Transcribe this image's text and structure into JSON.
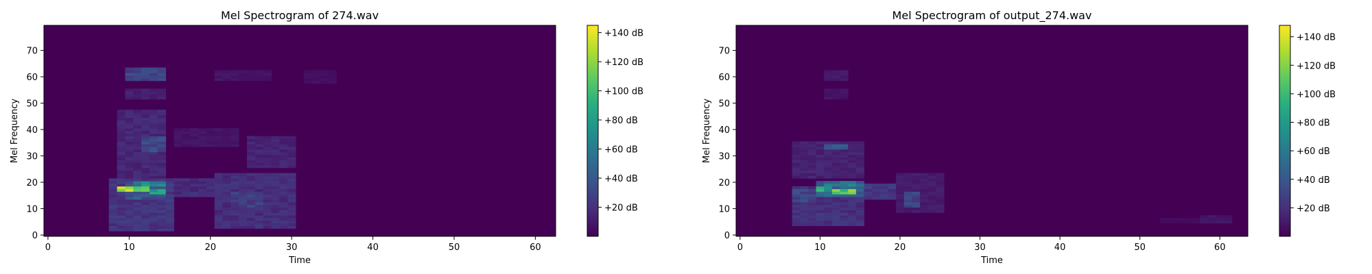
{
  "chart_data": [
    {
      "type": "heatmap",
      "title": "Mel Spectrogram of 274.wav",
      "xlabel": "Time",
      "ylabel": "Mel Frequency",
      "xlim": [
        -0.5,
        62.5
      ],
      "ylim": [
        -0.5,
        79.5
      ],
      "xticks": [
        0,
        10,
        20,
        30,
        40,
        50,
        60
      ],
      "yticks": [
        0,
        10,
        20,
        30,
        40,
        50,
        60,
        70
      ],
      "colormap": "viridis",
      "colorbar": {
        "range": [
          0,
          145
        ],
        "ticks": [
          20,
          40,
          60,
          80,
          100,
          120,
          140
        ],
        "tick_labels": [
          "+20 dB",
          "+40 dB",
          "+60 dB",
          "+80 dB",
          "+100 dB",
          "+120 dB",
          "+140 dB"
        ]
      },
      "regions": [
        {
          "t": [
            8,
            16
          ],
          "mel": [
            2,
            22
          ],
          "db": 28
        },
        {
          "t": [
            10,
            15
          ],
          "mel": [
            14,
            21
          ],
          "db": 50
        },
        {
          "t": [
            9,
            13
          ],
          "mel": [
            17,
            19
          ],
          "db": 140
        },
        {
          "t": [
            11,
            15
          ],
          "mel": [
            19,
            21
          ],
          "db": 85
        },
        {
          "t": [
            13,
            15
          ],
          "mel": [
            16,
            18
          ],
          "db": 90
        },
        {
          "t": [
            9,
            15
          ],
          "mel": [
            22,
            48
          ],
          "db": 20
        },
        {
          "t": [
            12,
            15
          ],
          "mel": [
            32,
            38
          ],
          "db": 42
        },
        {
          "t": [
            10,
            15
          ],
          "mel": [
            59,
            64
          ],
          "db": 38
        },
        {
          "t": [
            10,
            15
          ],
          "mel": [
            52,
            56
          ],
          "db": 16
        },
        {
          "t": [
            16,
            21
          ],
          "mel": [
            15,
            22
          ],
          "db": 22
        },
        {
          "t": [
            21,
            31
          ],
          "mel": [
            3,
            24
          ],
          "db": 24
        },
        {
          "t": [
            23,
            27
          ],
          "mel": [
            11,
            17
          ],
          "db": 34
        },
        {
          "t": [
            25,
            31
          ],
          "mel": [
            26,
            38
          ],
          "db": 18
        },
        {
          "t": [
            21,
            28
          ],
          "mel": [
            59,
            63
          ],
          "db": 10
        },
        {
          "t": [
            16,
            24
          ],
          "mel": [
            34,
            41
          ],
          "db": 10
        },
        {
          "t": [
            32,
            36
          ],
          "mel": [
            58,
            63
          ],
          "db": 8
        }
      ]
    },
    {
      "type": "heatmap",
      "title": "Mel Spectrogram of output_274.wav",
      "xlabel": "Time",
      "ylabel": "Mel Frequency",
      "xlim": [
        -0.5,
        63.5
      ],
      "ylim": [
        -0.5,
        79.5
      ],
      "xticks": [
        0,
        10,
        20,
        30,
        40,
        50,
        60
      ],
      "yticks": [
        0,
        10,
        20,
        30,
        40,
        50,
        60,
        70
      ],
      "colormap": "viridis",
      "colorbar": {
        "range": [
          0,
          148
        ],
        "ticks": [
          20,
          40,
          60,
          80,
          100,
          120,
          140
        ],
        "tick_labels": [
          "+20 dB",
          "+40 dB",
          "+60 dB",
          "+80 dB",
          "+100 dB",
          "+120 dB",
          "+140 dB"
        ]
      },
      "regions": [
        {
          "t": [
            7,
            16
          ],
          "mel": [
            4,
            19
          ],
          "db": 26
        },
        {
          "t": [
            7,
            10
          ],
          "mel": [
            13,
            18
          ],
          "db": 38
        },
        {
          "t": [
            10,
            16
          ],
          "mel": [
            15,
            21
          ],
          "db": 55
        },
        {
          "t": [
            10,
            12
          ],
          "mel": [
            17,
            19
          ],
          "db": 125
        },
        {
          "t": [
            12,
            15
          ],
          "mel": [
            16,
            18
          ],
          "db": 135
        },
        {
          "t": [
            11,
            15
          ],
          "mel": [
            19,
            21
          ],
          "db": 75
        },
        {
          "t": [
            7,
            16
          ],
          "mel": [
            22,
            36
          ],
          "db": 18
        },
        {
          "t": [
            11,
            14
          ],
          "mel": [
            33,
            35
          ],
          "db": 48
        },
        {
          "t": [
            11,
            14
          ],
          "mel": [
            59,
            63
          ],
          "db": 14
        },
        {
          "t": [
            11,
            14
          ],
          "mel": [
            52,
            56
          ],
          "db": 10
        },
        {
          "t": [
            16,
            20
          ],
          "mel": [
            14,
            20
          ],
          "db": 30
        },
        {
          "t": [
            21,
            23
          ],
          "mel": [
            11,
            17
          ],
          "db": 40
        },
        {
          "t": [
            20,
            26
          ],
          "mel": [
            9,
            24
          ],
          "db": 14
        },
        {
          "t": [
            53,
            58
          ],
          "mel": [
            5,
            7
          ],
          "db": 6
        },
        {
          "t": [
            58,
            62
          ],
          "mel": [
            5,
            8
          ],
          "db": 10
        }
      ]
    }
  ]
}
